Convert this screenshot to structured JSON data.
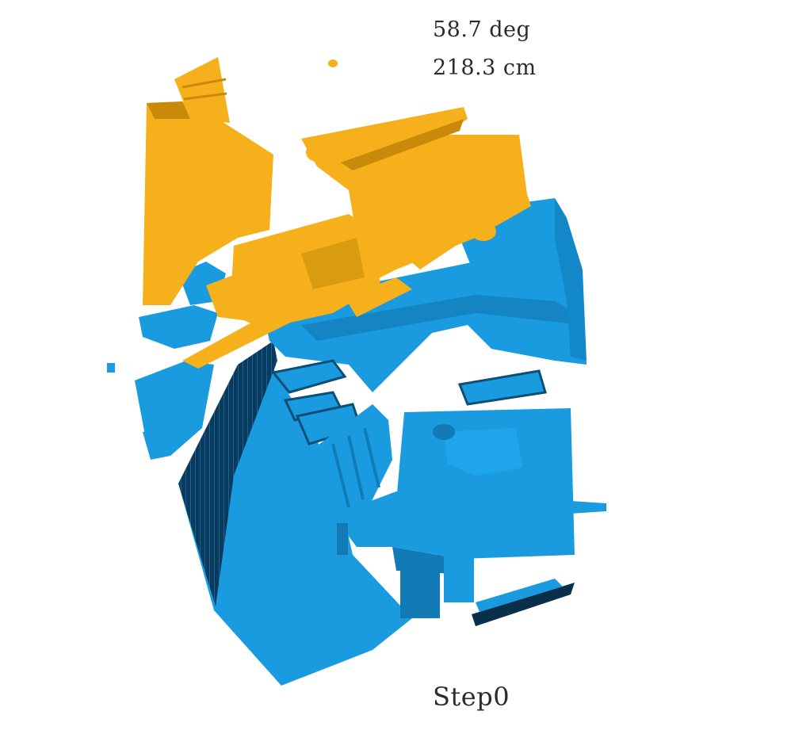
{
  "readouts": {
    "angle": "58.7 deg",
    "distance": "218.3 cm"
  },
  "step_label": "Step0",
  "colors": {
    "background": "#ffffff",
    "target_scan": "#1a9be0",
    "target_scan_shadow": "#0b4f76",
    "target_scan_dark": "#0a2f4a",
    "source_scan": "#f5b01c",
    "source_scan_shadow": "#c98a0a",
    "text": "#2b2b2b"
  }
}
